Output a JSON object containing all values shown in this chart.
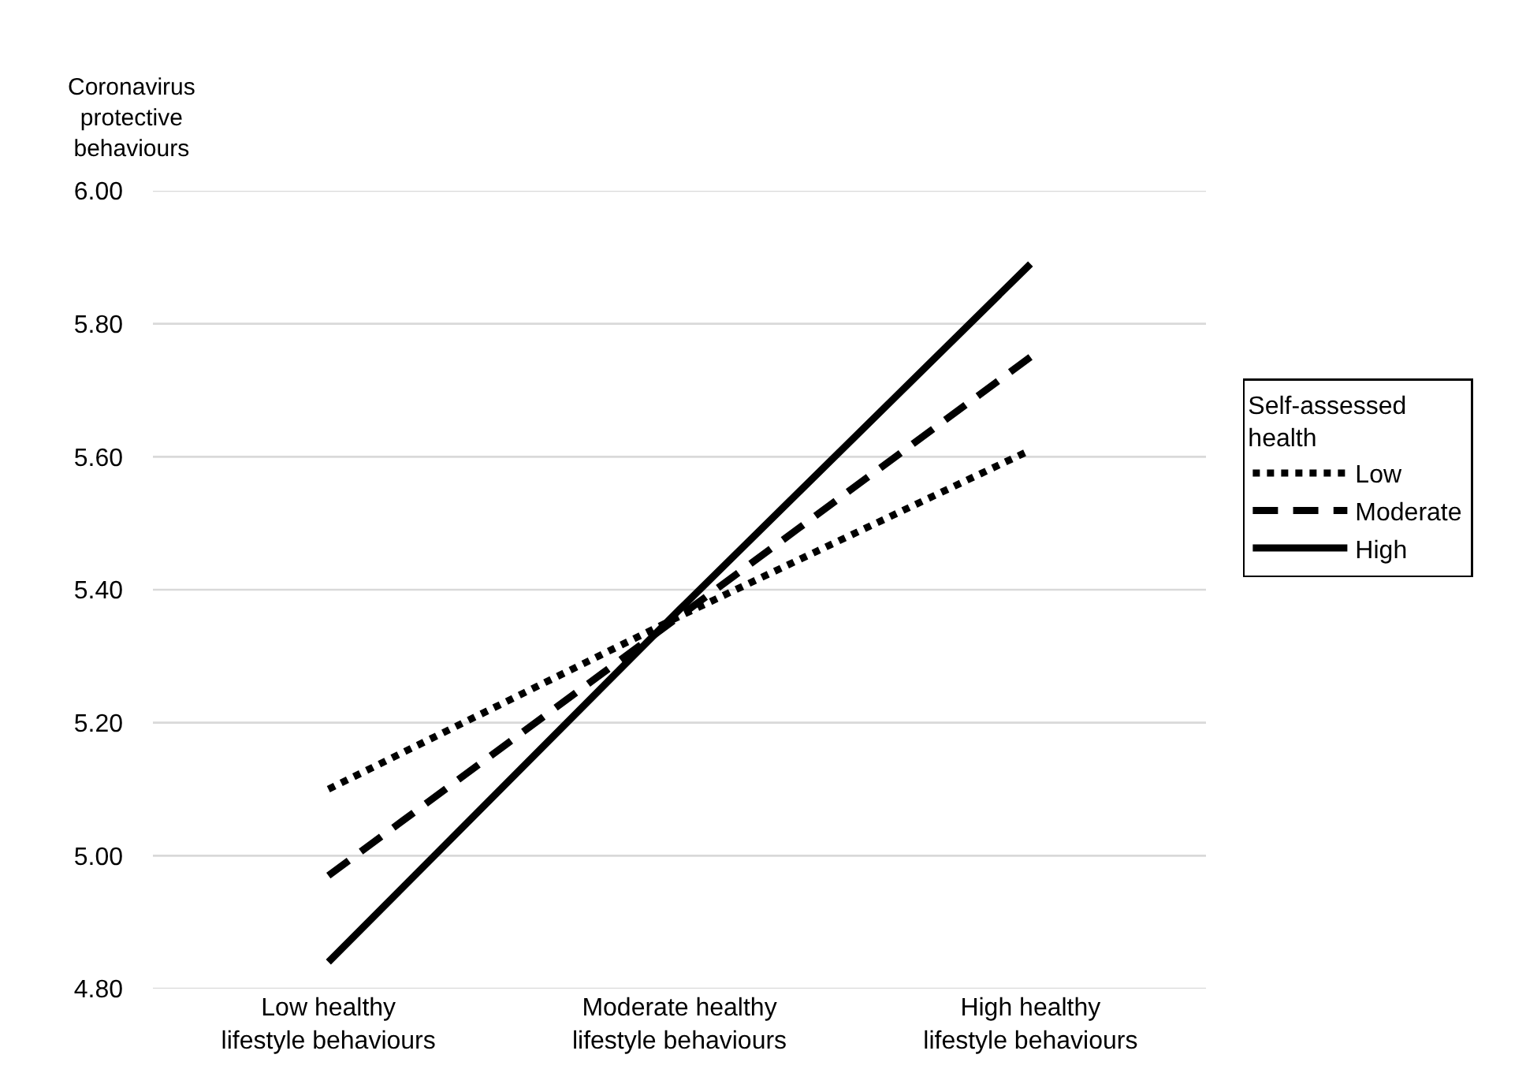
{
  "chart_data": {
    "type": "line",
    "ylabel": "Coronavirus protective behaviours",
    "legend_title": "Self-assessed health",
    "categories": [
      "Low healthy lifestyle behaviours",
      "Moderate healthy lifestyle behaviours",
      "High healthy lifestyle behaviours"
    ],
    "series": [
      {
        "name": "Low",
        "color": "#000000",
        "line_style": "dotted",
        "values": [
          5.1,
          5.36,
          5.61
        ]
      },
      {
        "name": "Moderate",
        "color": "#000000",
        "line_style": "dashed",
        "values": [
          4.97,
          5.36,
          5.75
        ]
      },
      {
        "name": "High",
        "color": "#000000",
        "line_style": "solid",
        "values": [
          4.84,
          5.37,
          5.89
        ]
      }
    ],
    "ylim": [
      4.8,
      6.0
    ],
    "yticks": [
      {
        "value": 4.8,
        "label": "4.80"
      },
      {
        "value": 5.0,
        "label": "5.00"
      },
      {
        "value": 5.2,
        "label": "5.20"
      },
      {
        "value": 5.4,
        "label": "5.40"
      },
      {
        "value": 5.6,
        "label": "5.60"
      },
      {
        "value": 5.8,
        "label": "5.80"
      },
      {
        "value": 6.0,
        "label": "6.00"
      }
    ],
    "grid": "y",
    "legend": "right",
    "marker": "none"
  }
}
